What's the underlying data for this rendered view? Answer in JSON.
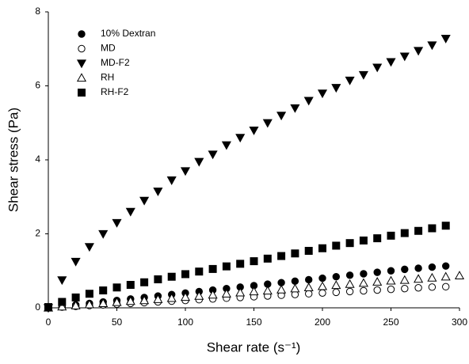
{
  "chart_data": {
    "type": "scatter",
    "xlabel": "Shear rate (s⁻¹)",
    "ylabel": "Shear stress (Pa)",
    "xlim": [
      0,
      300
    ],
    "ylim": [
      0,
      8
    ],
    "xticks": [
      0,
      50,
      100,
      150,
      200,
      250,
      300
    ],
    "yticks": [
      0,
      2,
      4,
      6,
      8
    ],
    "legend": "upper left",
    "series": [
      {
        "name": "10% Dextran",
        "color": "#000000",
        "marker": "circle",
        "x": [
          0,
          10,
          20,
          30,
          40,
          50,
          60,
          70,
          80,
          90,
          100,
          110,
          120,
          130,
          140,
          150,
          160,
          170,
          180,
          190,
          200,
          210,
          220,
          230,
          240,
          250,
          260,
          270,
          280,
          290
        ],
        "values": [
          0,
          0.04,
          0.08,
          0.12,
          0.16,
          0.2,
          0.24,
          0.28,
          0.32,
          0.36,
          0.4,
          0.44,
          0.48,
          0.52,
          0.56,
          0.6,
          0.64,
          0.68,
          0.72,
          0.76,
          0.8,
          0.84,
          0.88,
          0.92,
          0.96,
          1.0,
          1.04,
          1.07,
          1.1,
          1.13
        ]
      },
      {
        "name": "MD",
        "color": "#000000",
        "marker": "circle-open",
        "x": [
          0,
          10,
          20,
          30,
          40,
          50,
          60,
          70,
          80,
          90,
          100,
          110,
          120,
          130,
          140,
          150,
          160,
          170,
          180,
          190,
          200,
          210,
          220,
          230,
          240,
          250,
          260,
          270,
          280,
          290
        ],
        "values": [
          0,
          0.02,
          0.04,
          0.06,
          0.08,
          0.1,
          0.12,
          0.14,
          0.16,
          0.18,
          0.2,
          0.22,
          0.24,
          0.26,
          0.28,
          0.3,
          0.32,
          0.34,
          0.36,
          0.38,
          0.4,
          0.42,
          0.44,
          0.46,
          0.48,
          0.5,
          0.52,
          0.54,
          0.56,
          0.57
        ]
      },
      {
        "name": "MD-F2",
        "color": "#000000",
        "marker": "triangle-down",
        "x": [
          0,
          10,
          20,
          30,
          40,
          50,
          60,
          70,
          80,
          90,
          100,
          110,
          120,
          130,
          140,
          150,
          160,
          170,
          180,
          190,
          200,
          210,
          220,
          230,
          240,
          250,
          260,
          270,
          280,
          290
        ],
        "values": [
          0,
          0.75,
          1.25,
          1.65,
          2.0,
          2.3,
          2.6,
          2.9,
          3.15,
          3.45,
          3.7,
          3.95,
          4.15,
          4.4,
          4.6,
          4.8,
          5.0,
          5.2,
          5.4,
          5.6,
          5.8,
          5.95,
          6.15,
          6.3,
          6.5,
          6.65,
          6.8,
          6.95,
          7.1,
          7.28
        ]
      },
      {
        "name": "RH",
        "color": "#000000",
        "marker": "triangle-up-open",
        "x": [
          0,
          10,
          20,
          30,
          40,
          50,
          60,
          70,
          80,
          90,
          100,
          110,
          120,
          130,
          140,
          150,
          160,
          170,
          180,
          190,
          200,
          210,
          220,
          230,
          240,
          250,
          260,
          270,
          280,
          290,
          300
        ],
        "values": [
          0,
          0.03,
          0.06,
          0.09,
          0.12,
          0.15,
          0.18,
          0.2,
          0.23,
          0.26,
          0.29,
          0.32,
          0.35,
          0.38,
          0.41,
          0.44,
          0.46,
          0.49,
          0.52,
          0.55,
          0.58,
          0.61,
          0.64,
          0.67,
          0.7,
          0.73,
          0.75,
          0.78,
          0.81,
          0.84,
          0.87
        ]
      },
      {
        "name": "RH-F2",
        "color": "#000000",
        "marker": "square",
        "x": [
          0,
          10,
          20,
          30,
          40,
          50,
          60,
          70,
          80,
          90,
          100,
          110,
          120,
          130,
          140,
          150,
          160,
          170,
          180,
          190,
          200,
          210,
          220,
          230,
          240,
          250,
          260,
          270,
          280,
          290
        ],
        "values": [
          0.02,
          0.16,
          0.28,
          0.38,
          0.47,
          0.55,
          0.62,
          0.69,
          0.77,
          0.84,
          0.91,
          0.98,
          1.05,
          1.12,
          1.19,
          1.26,
          1.33,
          1.4,
          1.47,
          1.54,
          1.61,
          1.68,
          1.75,
          1.82,
          1.88,
          1.95,
          2.02,
          2.08,
          2.15,
          2.22
        ]
      }
    ]
  }
}
